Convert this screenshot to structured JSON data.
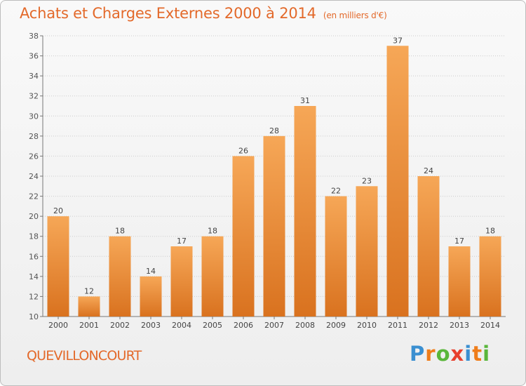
{
  "title": "Achats et Charges Externes 2000 à 2014",
  "subtitle": "(en milliers d'€)",
  "location": "QUEVILLONCOURT",
  "brand": {
    "letters": [
      "P",
      "r",
      "o",
      "x",
      "i",
      "t",
      "i"
    ],
    "colors": [
      "#3a8fd1",
      "#ef7d1a",
      "#59b63a",
      "#e8402d",
      "#3a8fd1",
      "#ef7d1a",
      "#59b63a"
    ]
  },
  "colors": {
    "bar_light": "#f6a757",
    "bar_dark": "#d9721f",
    "title": "#e3692a",
    "grid": "#cccccc"
  },
  "chart_data": {
    "type": "bar",
    "categories": [
      "2000",
      "2001",
      "2002",
      "2003",
      "2004",
      "2005",
      "2006",
      "2007",
      "2008",
      "2009",
      "2010",
      "2011",
      "2012",
      "2013",
      "2014"
    ],
    "values": [
      20,
      12,
      18,
      14,
      17,
      18,
      26,
      28,
      31,
      22,
      23,
      37,
      24,
      17,
      18
    ],
    "ylim": [
      10,
      38
    ],
    "yticks": [
      10,
      12,
      14,
      16,
      18,
      20,
      22,
      24,
      26,
      28,
      30,
      32,
      34,
      36,
      38
    ],
    "grid": true,
    "title": "Achats et Charges Externes 2000 à 2014",
    "xlabel": "",
    "ylabel": ""
  }
}
